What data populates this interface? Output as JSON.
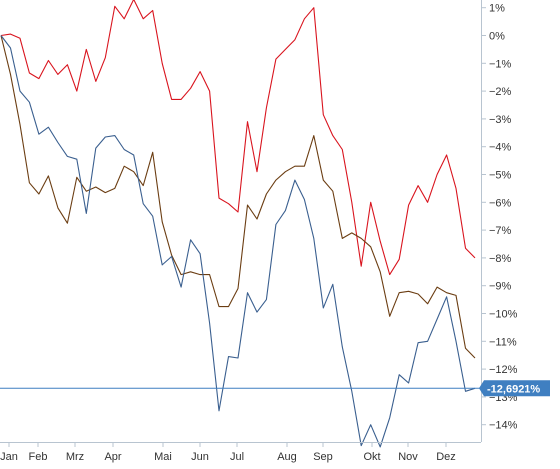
{
  "chart_data": {
    "type": "line",
    "title": "",
    "xlabel": "",
    "ylabel": "",
    "x_ticks": [
      "Jan",
      "Feb",
      "Mrz",
      "Apr",
      "Mai",
      "Jun",
      "Jul",
      "Aug",
      "Sep",
      "Okt",
      "Nov",
      "Dez"
    ],
    "x_range": [
      0,
      47
    ],
    "y_ticks": [
      "1%",
      "0%",
      "−1%",
      "−2%",
      "−3%",
      "−4%",
      "−5%",
      "−6%",
      "−7%",
      "−8%",
      "−9%",
      "−10%",
      "−11%",
      "−12%",
      "−13%",
      "−14%"
    ],
    "y_tick_values": [
      1,
      0,
      -1,
      -2,
      -3,
      -4,
      -5,
      -6,
      -7,
      -8,
      -9,
      -10,
      -11,
      -12,
      -13,
      -14
    ],
    "ylim": [
      -14.8,
      1.3
    ],
    "y_axis_side": "right",
    "grid": false,
    "legend": "none",
    "colors": {
      "red": "#d9141e",
      "brown": "#6b3d12",
      "blue": "#3a5f8f",
      "marker": "#3f7fc1",
      "axis": "#b8c4d0"
    },
    "current_value": {
      "label": "-12,6921%",
      "value": -12.69
    },
    "series": [
      {
        "color": "red",
        "values": [
          0.0,
          0.05,
          -0.1,
          -1.35,
          -1.55,
          -0.9,
          -1.4,
          -1.05,
          -2.0,
          -0.5,
          -1.65,
          -0.8,
          1.05,
          0.6,
          1.3,
          0.6,
          0.9,
          -1.0,
          -2.3,
          -2.3,
          -1.9,
          -1.3,
          -2.0,
          -5.85,
          -6.05,
          -6.35,
          -3.1,
          -4.9,
          -2.6,
          -0.85,
          -0.5,
          -0.15,
          0.6,
          1.0,
          -2.85,
          -3.6,
          -4.1,
          -6.0,
          -8.3,
          -6.0,
          -7.4,
          -8.6,
          -8.05,
          -6.1,
          -5.4,
          -6.0,
          -5.0,
          -4.3,
          -5.5,
          -7.65,
          -8.0
        ]
      },
      {
        "color": "brown",
        "values": [
          0.0,
          -1.4,
          -3.2,
          -5.3,
          -5.7,
          -5.05,
          -6.2,
          -6.75,
          -5.1,
          -5.6,
          -5.45,
          -5.65,
          -5.5,
          -4.7,
          -4.9,
          -5.4,
          -4.2,
          -6.7,
          -7.9,
          -8.6,
          -8.5,
          -8.6,
          -8.6,
          -9.75,
          -9.75,
          -9.1,
          -6.1,
          -6.6,
          -5.7,
          -5.2,
          -4.9,
          -4.7,
          -4.7,
          -3.6,
          -5.2,
          -5.6,
          -7.3,
          -7.1,
          -7.3,
          -7.6,
          -8.5,
          -10.1,
          -9.25,
          -9.2,
          -9.3,
          -9.65,
          -9.05,
          -9.25,
          -9.35,
          -11.25,
          -11.6
        ]
      },
      {
        "color": "blue",
        "values": [
          0.0,
          -0.45,
          -2.0,
          -2.4,
          -3.55,
          -3.3,
          -3.85,
          -4.35,
          -4.45,
          -6.4,
          -4.05,
          -3.65,
          -3.6,
          -4.1,
          -4.3,
          -6.05,
          -6.5,
          -8.25,
          -7.95,
          -9.05,
          -7.35,
          -7.85,
          -10.35,
          -13.5,
          -11.55,
          -11.6,
          -9.25,
          -9.95,
          -9.5,
          -6.8,
          -6.3,
          -5.2,
          -5.9,
          -7.3,
          -9.8,
          -8.95,
          -11.2,
          -12.8,
          -14.75,
          -14.0,
          -14.8,
          -13.75,
          -12.2,
          -12.5,
          -11.05,
          -11.0,
          -10.2,
          -9.4,
          -11.0,
          -12.8,
          -12.69
        ]
      }
    ]
  }
}
